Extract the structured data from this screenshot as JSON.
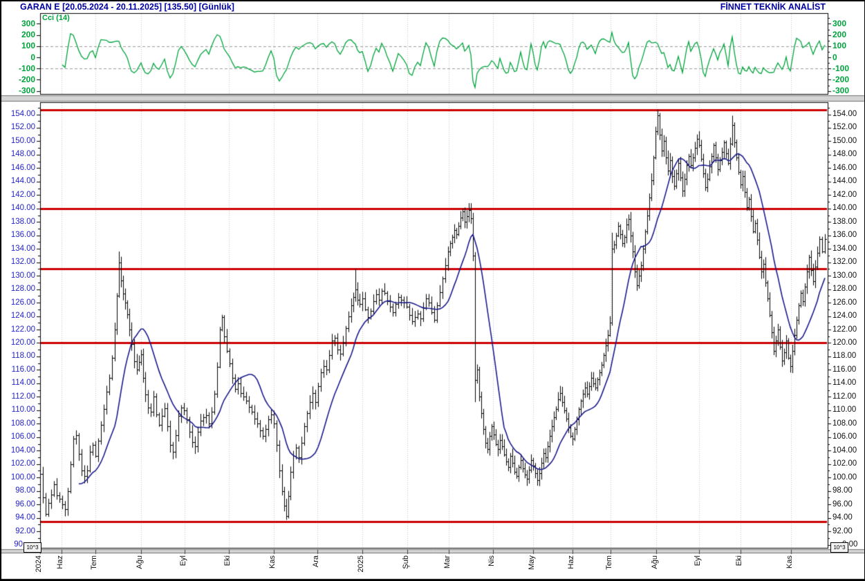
{
  "header": {
    "left": "GARAN E  [20.05.2024 - 20.11.2025]  [135.50]  [Günlük]",
    "right": "FİNNET TEKNİK ANALİST"
  },
  "axes": {
    "scale_note": "10^3",
    "price_ticks": [
      154,
      152,
      150,
      148,
      146,
      144,
      142,
      140,
      138,
      136,
      134,
      132,
      130,
      128,
      126,
      124,
      122,
      120,
      118,
      116,
      114,
      112,
      110,
      108,
      106,
      104,
      102,
      100,
      98,
      96,
      94,
      92
    ],
    "price_bottom_left": "90",
    "price_bottom_right": "0.00",
    "cci_ticks": [
      300,
      200,
      100,
      0,
      -100,
      -200,
      -300
    ],
    "months": [
      [
        "2024",
        57
      ],
      [
        "Haz",
        88
      ],
      [
        "Tem",
        137
      ],
      [
        "Ağu",
        203
      ],
      [
        "Eyl",
        266
      ],
      [
        "Eki",
        330
      ],
      [
        "Kas",
        395
      ],
      [
        "Ara",
        458
      ],
      [
        "2025",
        523
      ],
      [
        "Şub",
        588
      ],
      [
        "Mar",
        648
      ],
      [
        "Nis",
        712
      ],
      [
        "May",
        770
      ],
      [
        "Haz",
        827
      ],
      [
        "Tem",
        882
      ],
      [
        "Ağu",
        948
      ],
      [
        "Eyl",
        1010
      ],
      [
        "Eki",
        1070
      ],
      [
        "Kas",
        1143
      ]
    ]
  },
  "colors": {
    "title_blue": "#0000A0",
    "cci_green": "#00A43C",
    "price_label_blue": "#2424CC",
    "support_red": "#CC0000",
    "ma_navy": "#1A1A8C",
    "bar_black": "#000000",
    "grid_dot": "#C4C4C4",
    "grid_dash": "#9A9A9A"
  },
  "chart_data": {
    "type": "ohlc-bar",
    "title": "GARAN E",
    "period_label": "Günlük",
    "date_range": [
      "20.05.2024",
      "20.11.2025"
    ],
    "last_price": 135.5,
    "indicator": {
      "name": "Cci (14)",
      "panel": "top",
      "axis_range": [
        -300,
        300
      ],
      "dashed_levels": [
        100,
        -100
      ],
      "window_bars": 9
    },
    "moving_average": {
      "type": "simple",
      "window_bars": 15
    },
    "support_resistance_levels": [
      154.7,
      140.0,
      131.0,
      120.0,
      93.4
    ],
    "price_axis_range": [
      90,
      154
    ],
    "bars_format": "[x_px, close] pairs; open = previous close; highs/lows approximated, overridden by wicks",
    "bars": [
      57,
      100.5,
      61,
      97.0,
      65,
      94.6,
      69,
      96.2,
      73,
      97.5,
      77,
      99.0,
      81,
      97.4,
      85,
      96.8,
      89,
      96.0,
      93,
      95.3,
      97,
      98.0,
      101,
      102.0,
      105,
      105.8,
      109,
      106.3,
      113,
      103.5,
      117,
      101.0,
      121,
      100.2,
      125,
      101.0,
      129,
      103.8,
      133,
      104.8,
      137,
      103.2,
      141,
      105.5,
      145,
      107.8,
      149,
      110.2,
      153,
      112.8,
      157,
      114.8,
      161,
      117.8,
      165,
      122.0,
      168,
      127.0,
      171,
      132.0,
      174,
      129.3,
      177,
      127.3,
      180,
      126.0,
      183,
      124.3,
      186,
      122.0,
      189,
      119.8,
      193,
      117.3,
      197,
      116.0,
      200,
      117.2,
      203,
      118.3,
      206,
      114.8,
      209,
      112.3,
      213,
      110.4,
      217,
      109.8,
      221,
      112.0,
      225,
      109.4,
      229,
      107.8,
      233,
      109.2,
      237,
      110.3,
      241,
      107.6,
      245,
      104.8,
      249,
      103.8,
      253,
      106.3,
      257,
      109.2,
      261,
      110.4,
      265,
      110.0,
      269,
      108.6,
      273,
      106.8,
      277,
      105.3,
      281,
      104.6,
      285,
      106.8,
      289,
      108.4,
      293,
      109.0,
      297,
      109.3,
      301,
      108.0,
      305,
      109.8,
      309,
      112.5,
      313,
      116.5,
      317,
      122.0,
      320,
      123.8,
      323,
      121.0,
      327,
      118.8,
      331,
      117.0,
      335,
      114.8,
      339,
      113.2,
      343,
      114.0,
      347,
      112.6,
      351,
      112.0,
      355,
      111.4,
      359,
      110.5,
      363,
      109.8,
      367,
      108.8,
      371,
      108.0,
      375,
      107.0,
      379,
      106.2,
      383,
      107.2,
      387,
      108.6,
      391,
      109.4,
      395,
      108.0,
      399,
      104.8,
      403,
      101.0,
      407,
      98.0,
      410,
      95.8,
      413,
      94.3,
      416,
      97.2,
      419,
      100.8,
      423,
      103.2,
      427,
      104.4,
      431,
      103.0,
      435,
      105.2,
      439,
      107.6,
      443,
      109.6,
      447,
      111.2,
      451,
      112.6,
      455,
      111.2,
      459,
      113.6,
      463,
      115.6,
      467,
      116.6,
      471,
      116.0,
      475,
      118.2,
      479,
      120.4,
      483,
      120.8,
      487,
      119.0,
      491,
      118.4,
      495,
      120.0,
      499,
      122.2,
      503,
      124.0,
      507,
      125.6,
      510,
      126.8,
      513,
      128.0,
      516,
      126.4,
      519,
      125.8,
      523,
      126.6,
      527,
      125.0,
      531,
      123.8,
      535,
      124.8,
      539,
      126.2,
      543,
      127.2,
      547,
      126.4,
      551,
      127.8,
      555,
      127.4,
      559,
      126.2,
      563,
      125.4,
      567,
      124.6,
      571,
      125.8,
      575,
      126.8,
      579,
      126.4,
      583,
      126.0,
      587,
      125.4,
      591,
      124.2,
      595,
      123.2,
      599,
      123.8,
      603,
      124.4,
      607,
      123.6,
      611,
      125.2,
      615,
      126.6,
      619,
      126.0,
      623,
      124.6,
      627,
      123.4,
      631,
      125.6,
      635,
      127.6,
      639,
      129.6,
      643,
      131.6,
      647,
      133.6,
      650,
      134.8,
      653,
      135.8,
      656,
      136.8,
      659,
      136.2,
      662,
      137.4,
      665,
      138.6,
      668,
      139.6,
      671,
      138.0,
      674,
      138.8,
      677,
      139.8,
      680,
      138.5,
      683,
      133.0,
      686,
      114.5,
      689,
      116.0,
      692,
      112.0,
      695,
      109.6,
      698,
      107.2,
      701,
      105.2,
      704,
      104.2,
      707,
      106.2,
      710,
      107.6,
      713,
      106.4,
      716,
      105.0,
      719,
      104.2,
      722,
      105.6,
      725,
      104.6,
      728,
      103.4,
      731,
      102.4,
      734,
      101.6,
      737,
      103.2,
      740,
      102.2,
      743,
      100.8,
      746,
      100.2,
      749,
      101.6,
      752,
      102.6,
      755,
      101.4,
      758,
      100.4,
      761,
      99.8,
      764,
      101.2,
      767,
      102.6,
      770,
      101.8,
      773,
      100.6,
      776,
      99.6,
      779,
      100.6,
      782,
      102.2,
      785,
      103.6,
      788,
      103.0,
      791,
      104.6,
      794,
      106.2,
      797,
      107.6,
      800,
      109.0,
      803,
      110.2,
      806,
      111.6,
      809,
      112.6,
      812,
      111.2,
      815,
      110.0,
      818,
      108.8,
      821,
      107.4,
      824,
      106.2,
      827,
      105.8,
      830,
      107.2,
      833,
      108.6,
      836,
      110.2,
      839,
      111.4,
      842,
      112.4,
      845,
      113.4,
      848,
      112.4,
      851,
      113.6,
      854,
      114.8,
      857,
      114.0,
      860,
      113.4,
      863,
      114.6,
      866,
      115.6,
      869,
      116.8,
      872,
      118.2,
      875,
      119.6,
      878,
      121.2,
      881,
      123.0,
      884,
      134.0,
      887,
      134.6,
      890,
      136.0,
      893,
      137.4,
      896,
      136.2,
      899,
      134.8,
      902,
      135.8,
      905,
      137.6,
      908,
      138.4,
      911,
      136.0,
      914,
      133.6,
      917,
      130.6,
      920,
      128.6,
      923,
      130.0,
      926,
      131.6,
      929,
      134.0,
      932,
      136.6,
      935,
      139.0,
      938,
      141.6,
      941,
      144.2,
      944,
      147.6,
      947,
      151.5,
      950,
      153.8,
      953,
      151.0,
      956,
      148.6,
      959,
      150.0,
      962,
      147.6,
      965,
      145.6,
      968,
      147.2,
      971,
      144.8,
      974,
      143.4,
      977,
      145.2,
      980,
      146.8,
      983,
      144.6,
      986,
      142.6,
      989,
      144.4,
      992,
      146.4,
      995,
      147.8,
      998,
      146.4,
      1001,
      147.6,
      1004,
      149.0,
      1007,
      150.4,
      1010,
      149.4,
      1013,
      147.4,
      1016,
      145.2,
      1019,
      143.2,
      1022,
      144.4,
      1025,
      146.2,
      1028,
      147.8,
      1031,
      149.4,
      1034,
      147.6,
      1037,
      145.8,
      1040,
      147.2,
      1043,
      148.4,
      1046,
      149.8,
      1049,
      148.2,
      1052,
      146.8,
      1055,
      149.6,
      1058,
      152.4,
      1061,
      149.8,
      1064,
      147.6,
      1067,
      145.4,
      1070,
      143.6,
      1073,
      144.8,
      1076,
      142.4,
      1079,
      140.2,
      1082,
      141.4,
      1085,
      138.8,
      1088,
      136.6,
      1091,
      137.8,
      1094,
      135.4,
      1097,
      132.8,
      1100,
      130.6,
      1103,
      131.8,
      1106,
      129.0,
      1109,
      126.6,
      1112,
      124.2,
      1115,
      121.6,
      1118,
      118.8,
      1121,
      120.4,
      1124,
      122.0,
      1127,
      119.4,
      1130,
      117.4,
      1133,
      118.6,
      1136,
      120.4,
      1139,
      117.8,
      1142,
      116.6,
      1145,
      118.8,
      1148,
      121.2,
      1151,
      123.4,
      1154,
      125.6,
      1157,
      127.4,
      1160,
      126.2,
      1163,
      128.4,
      1166,
      130.6,
      1169,
      132.8,
      1172,
      130.8,
      1175,
      129.2,
      1178,
      131.4,
      1181,
      133.4,
      1184,
      135.5,
      1188,
      133.6,
      1192,
      135.5
    ],
    "wicks": [
      [
        57,
        101.5,
        96.0
      ],
      [
        65,
        null,
        94.2
      ],
      [
        171,
        133.6,
        null
      ],
      [
        413,
        null,
        93.7
      ],
      [
        513,
        131.0,
        null
      ],
      [
        677,
        140.8,
        null
      ],
      [
        686,
        null,
        111.2
      ],
      [
        884,
        136.4,
        null
      ],
      [
        950,
        154.75,
        null
      ],
      [
        1058,
        153.8,
        null
      ],
      [
        1192,
        136.2,
        null
      ]
    ],
    "wick_seed": 7
  }
}
